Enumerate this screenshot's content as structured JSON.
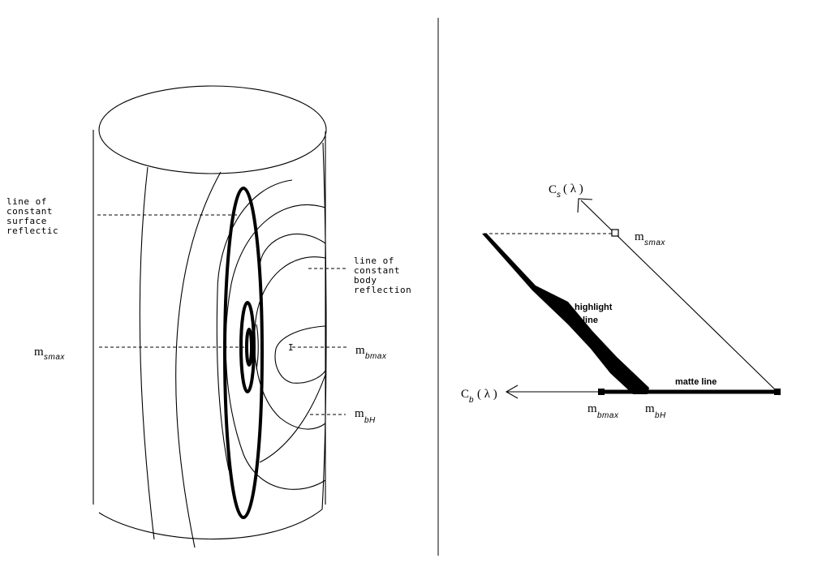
{
  "left": {
    "label_surface": [
      "line of",
      "constant",
      "surface",
      "reflectic"
    ],
    "label_body": [
      "line of",
      "constant",
      "body",
      "reflection"
    ],
    "m_smax": {
      "m": "m",
      "sub": "smax"
    },
    "m_bmax": {
      "m": "m",
      "sub": "bmax"
    },
    "m_bH": {
      "m": "m",
      "sub": "bH"
    },
    "center_tick": "I"
  },
  "right": {
    "cs_label": {
      "c": "C",
      "sub": "s",
      "arg": "( λ )"
    },
    "cb_label": {
      "c": "C",
      "sub": "b",
      "arg": "( λ )"
    },
    "m_smax": {
      "m": "m",
      "sub": "smax"
    },
    "m_bmax": {
      "m": "m",
      "sub": "bmax"
    },
    "m_bH": {
      "m": "m",
      "sub": "bH"
    },
    "highlight_line": [
      "highlight",
      "line"
    ],
    "matte_line": "matte line"
  }
}
